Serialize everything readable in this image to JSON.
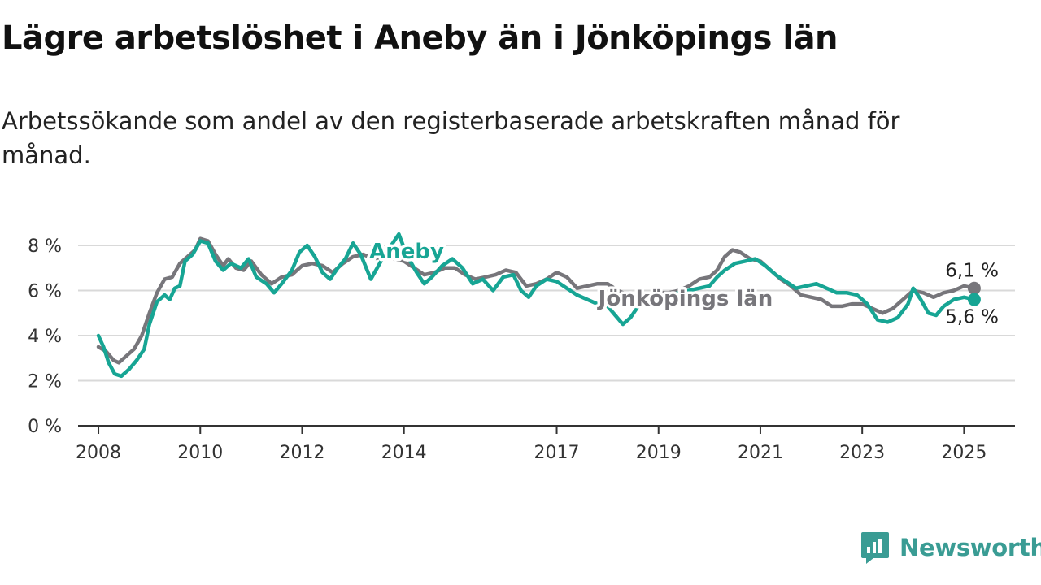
{
  "title": "Lägre arbetslöshet i Aneby än i Jönköpings län",
  "subtitle": "Arbetssökande som andel av den registerbaserade arbetskraften månad för månad.",
  "brand": {
    "name": "Newsworthy",
    "icon": "newsworthy-logo-icon",
    "color": "#3a9c94"
  },
  "chart_data": {
    "type": "line",
    "title": "Lägre arbetslöshet i Aneby än i Jönköpings län",
    "subtitle": "Arbetssökande som andel av den registerbaserade arbetskraften månad för månad.",
    "xlabel": "",
    "ylabel": "",
    "ylim": [
      0,
      8
    ],
    "xlim": [
      2007.6,
      2026.0
    ],
    "grid": true,
    "y_ticks": [
      0,
      2,
      4,
      6,
      8
    ],
    "y_tick_labels": [
      "0 %",
      "2 %",
      "4 %",
      "6 %",
      "8 %"
    ],
    "x_ticks": [
      2008,
      2010,
      2012,
      2014,
      2017,
      2019,
      2021,
      2023,
      2025
    ],
    "x_tick_labels": [
      "2008",
      "2010",
      "2012",
      "2014",
      "2017",
      "2019",
      "2021",
      "2023",
      "2025"
    ],
    "series": [
      {
        "name": "Jönköpings län",
        "color": "#77767b",
        "end_label": "6,1 %",
        "points": [
          [
            2008.0,
            3.5
          ],
          [
            2008.15,
            3.3
          ],
          [
            2008.3,
            2.9
          ],
          [
            2008.4,
            2.8
          ],
          [
            2008.55,
            3.1
          ],
          [
            2008.7,
            3.4
          ],
          [
            2008.85,
            4.0
          ],
          [
            2009.0,
            5.0
          ],
          [
            2009.15,
            5.9
          ],
          [
            2009.3,
            6.5
          ],
          [
            2009.45,
            6.6
          ],
          [
            2009.6,
            7.2
          ],
          [
            2009.75,
            7.5
          ],
          [
            2009.9,
            7.8
          ],
          [
            2010.0,
            8.3
          ],
          [
            2010.15,
            8.2
          ],
          [
            2010.3,
            7.6
          ],
          [
            2010.45,
            7.1
          ],
          [
            2010.55,
            7.4
          ],
          [
            2010.7,
            7.0
          ],
          [
            2010.85,
            6.9
          ],
          [
            2011.0,
            7.3
          ],
          [
            2011.2,
            6.7
          ],
          [
            2011.4,
            6.3
          ],
          [
            2011.6,
            6.6
          ],
          [
            2011.8,
            6.7
          ],
          [
            2012.0,
            7.1
          ],
          [
            2012.2,
            7.2
          ],
          [
            2012.4,
            7.1
          ],
          [
            2012.6,
            6.8
          ],
          [
            2012.8,
            7.2
          ],
          [
            2013.0,
            7.5
          ],
          [
            2013.2,
            7.6
          ],
          [
            2013.4,
            7.4
          ],
          [
            2013.6,
            7.5
          ],
          [
            2013.8,
            7.4
          ],
          [
            2014.0,
            7.3
          ],
          [
            2014.2,
            7.0
          ],
          [
            2014.4,
            6.7
          ],
          [
            2014.6,
            6.8
          ],
          [
            2014.8,
            7.0
          ],
          [
            2015.0,
            7.0
          ],
          [
            2015.2,
            6.7
          ],
          [
            2015.4,
            6.5
          ],
          [
            2015.6,
            6.6
          ],
          [
            2015.8,
            6.7
          ],
          [
            2016.0,
            6.9
          ],
          [
            2016.2,
            6.8
          ],
          [
            2016.4,
            6.2
          ],
          [
            2016.6,
            6.3
          ],
          [
            2016.8,
            6.5
          ],
          [
            2017.0,
            6.8
          ],
          [
            2017.2,
            6.6
          ],
          [
            2017.4,
            6.1
          ],
          [
            2017.6,
            6.2
          ],
          [
            2017.8,
            6.3
          ],
          [
            2018.0,
            6.3
          ],
          [
            2018.2,
            6.0
          ],
          [
            2018.4,
            5.8
          ],
          [
            2018.6,
            5.7
          ],
          [
            2018.8,
            5.8
          ],
          [
            2019.0,
            5.9
          ],
          [
            2019.2,
            5.9
          ],
          [
            2019.4,
            6.0
          ],
          [
            2019.6,
            6.2
          ],
          [
            2019.8,
            6.5
          ],
          [
            2020.0,
            6.6
          ],
          [
            2020.15,
            6.9
          ],
          [
            2020.3,
            7.5
          ],
          [
            2020.45,
            7.8
          ],
          [
            2020.6,
            7.7
          ],
          [
            2020.8,
            7.4
          ],
          [
            2021.0,
            7.3
          ],
          [
            2021.2,
            6.9
          ],
          [
            2021.4,
            6.5
          ],
          [
            2021.6,
            6.2
          ],
          [
            2021.8,
            5.8
          ],
          [
            2022.0,
            5.7
          ],
          [
            2022.2,
            5.6
          ],
          [
            2022.4,
            5.3
          ],
          [
            2022.6,
            5.3
          ],
          [
            2022.8,
            5.4
          ],
          [
            2023.0,
            5.4
          ],
          [
            2023.2,
            5.2
          ],
          [
            2023.4,
            5.0
          ],
          [
            2023.6,
            5.2
          ],
          [
            2023.8,
            5.6
          ],
          [
            2024.0,
            6.0
          ],
          [
            2024.2,
            5.9
          ],
          [
            2024.4,
            5.7
          ],
          [
            2024.6,
            5.9
          ],
          [
            2024.8,
            6.0
          ],
          [
            2025.0,
            6.2
          ],
          [
            2025.2,
            6.1
          ]
        ]
      },
      {
        "name": "Aneby",
        "color": "#17a594",
        "end_label": "5,6 %",
        "points": [
          [
            2008.0,
            4.0
          ],
          [
            2008.1,
            3.5
          ],
          [
            2008.2,
            2.8
          ],
          [
            2008.32,
            2.3
          ],
          [
            2008.45,
            2.2
          ],
          [
            2008.6,
            2.5
          ],
          [
            2008.75,
            2.9
          ],
          [
            2008.9,
            3.4
          ],
          [
            2009.0,
            4.5
          ],
          [
            2009.15,
            5.5
          ],
          [
            2009.3,
            5.8
          ],
          [
            2009.4,
            5.6
          ],
          [
            2009.5,
            6.1
          ],
          [
            2009.6,
            6.2
          ],
          [
            2009.7,
            7.3
          ],
          [
            2009.85,
            7.6
          ],
          [
            2010.0,
            8.2
          ],
          [
            2010.15,
            8.1
          ],
          [
            2010.3,
            7.3
          ],
          [
            2010.45,
            6.9
          ],
          [
            2010.6,
            7.2
          ],
          [
            2010.8,
            7.0
          ],
          [
            2010.95,
            7.4
          ],
          [
            2011.1,
            6.6
          ],
          [
            2011.3,
            6.3
          ],
          [
            2011.45,
            5.9
          ],
          [
            2011.6,
            6.3
          ],
          [
            2011.8,
            6.9
          ],
          [
            2011.95,
            7.7
          ],
          [
            2012.1,
            8.0
          ],
          [
            2012.25,
            7.5
          ],
          [
            2012.4,
            6.8
          ],
          [
            2012.55,
            6.5
          ],
          [
            2012.7,
            7.0
          ],
          [
            2012.85,
            7.4
          ],
          [
            2013.0,
            8.1
          ],
          [
            2013.15,
            7.6
          ],
          [
            2013.35,
            6.5
          ],
          [
            2013.55,
            7.3
          ],
          [
            2013.75,
            8.0
          ],
          [
            2013.9,
            8.5
          ],
          [
            2014.05,
            7.6
          ],
          [
            2014.25,
            6.8
          ],
          [
            2014.4,
            6.3
          ],
          [
            2014.55,
            6.6
          ],
          [
            2014.75,
            7.1
          ],
          [
            2014.95,
            7.4
          ],
          [
            2015.15,
            7.0
          ],
          [
            2015.35,
            6.3
          ],
          [
            2015.55,
            6.5
          ],
          [
            2015.75,
            6.0
          ],
          [
            2015.95,
            6.6
          ],
          [
            2016.15,
            6.7
          ],
          [
            2016.3,
            6.0
          ],
          [
            2016.45,
            5.7
          ],
          [
            2016.6,
            6.2
          ],
          [
            2016.8,
            6.5
          ],
          [
            2017.0,
            6.4
          ],
          [
            2017.2,
            6.1
          ],
          [
            2017.4,
            5.8
          ],
          [
            2017.6,
            5.6
          ],
          [
            2017.8,
            5.4
          ],
          [
            2018.0,
            5.3
          ],
          [
            2018.15,
            4.9
          ],
          [
            2018.3,
            4.5
          ],
          [
            2018.45,
            4.8
          ],
          [
            2018.6,
            5.3
          ],
          [
            2018.8,
            5.6
          ],
          [
            2019.0,
            5.7
          ],
          [
            2019.2,
            5.8
          ],
          [
            2019.4,
            5.9
          ],
          [
            2019.6,
            6.0
          ],
          [
            2019.8,
            6.1
          ],
          [
            2020.0,
            6.2
          ],
          [
            2020.15,
            6.6
          ],
          [
            2020.3,
            6.9
          ],
          [
            2020.5,
            7.2
          ],
          [
            2020.7,
            7.3
          ],
          [
            2020.9,
            7.4
          ],
          [
            2021.1,
            7.1
          ],
          [
            2021.3,
            6.7
          ],
          [
            2021.5,
            6.4
          ],
          [
            2021.7,
            6.1
          ],
          [
            2021.9,
            6.2
          ],
          [
            2022.1,
            6.3
          ],
          [
            2022.3,
            6.1
          ],
          [
            2022.5,
            5.9
          ],
          [
            2022.7,
            5.9
          ],
          [
            2022.9,
            5.8
          ],
          [
            2023.1,
            5.4
          ],
          [
            2023.3,
            4.7
          ],
          [
            2023.5,
            4.6
          ],
          [
            2023.7,
            4.8
          ],
          [
            2023.9,
            5.4
          ],
          [
            2024.0,
            6.1
          ],
          [
            2024.15,
            5.6
          ],
          [
            2024.3,
            5.0
          ],
          [
            2024.45,
            4.9
          ],
          [
            2024.6,
            5.3
          ],
          [
            2024.8,
            5.6
          ],
          [
            2025.0,
            5.7
          ],
          [
            2025.2,
            5.6
          ]
        ]
      }
    ]
  }
}
